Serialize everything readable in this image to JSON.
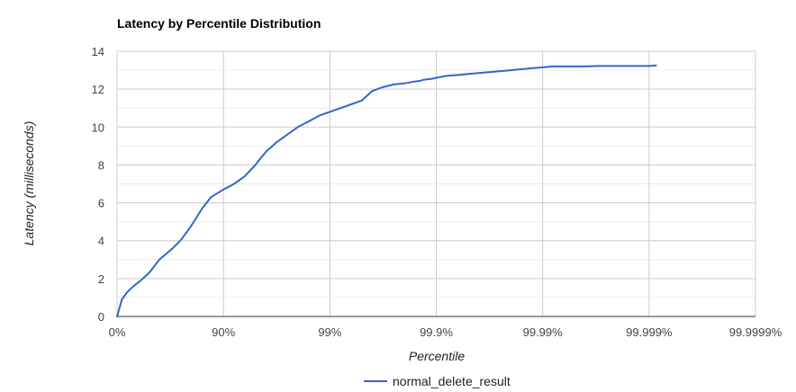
{
  "chart_data": {
    "type": "line",
    "title": "Latency by Percentile Distribution",
    "xlabel": "Percentile",
    "ylabel": "Latency (milliseconds)",
    "x_scale": "log-nines",
    "x_ticks": [
      "0%",
      "90%",
      "99%",
      "99.9%",
      "99.99%",
      "99.999%",
      "99.9999%"
    ],
    "y_ticks": [
      "0",
      "2",
      "4",
      "6",
      "8",
      "10",
      "12",
      "14"
    ],
    "ylim": [
      0,
      14
    ],
    "grid": true,
    "legend_position": "bottom",
    "colors": {
      "series": "#3366cc",
      "grid_major": "#cccccc",
      "grid_minor": "#ebebeb",
      "baseline": "#333333"
    },
    "series": [
      {
        "name": "normal_delete_result",
        "x": [
          0,
          10,
          20,
          30,
          40,
          50,
          60,
          70,
          75,
          80,
          84.15,
          86.9,
          90,
          92.06,
          93.69,
          94.99,
          96.02,
          96.84,
          97.49,
          98.0,
          98.42,
          98.74,
          99.0,
          99.21,
          99.37,
          99.5,
          99.6,
          99.68,
          99.75,
          99.8,
          99.82,
          99.84,
          99.86,
          99.87,
          99.89,
          99.9,
          99.92,
          99.94,
          99.95,
          99.96,
          99.968,
          99.975,
          99.98,
          99.984,
          99.987,
          99.99,
          99.992,
          99.994,
          99.995,
          99.996,
          99.997,
          99.998,
          99.9984,
          99.9987,
          99.999,
          99.99914
        ],
        "values": [
          0,
          0.9,
          1.3,
          1.6,
          1.9,
          2.3,
          3.0,
          3.6,
          4.05,
          4.8,
          5.7,
          6.3,
          6.7,
          7.0,
          7.4,
          8.0,
          8.7,
          9.2,
          9.6,
          10.0,
          10.3,
          10.6,
          10.8,
          11.0,
          11.2,
          11.4,
          11.9,
          12.1,
          12.25,
          12.3,
          12.35,
          12.4,
          12.45,
          12.5,
          12.55,
          12.6,
          12.7,
          12.75,
          12.8,
          12.85,
          12.9,
          12.95,
          13.0,
          13.05,
          13.1,
          13.15,
          13.2,
          13.2,
          13.2,
          13.2,
          13.22,
          13.22,
          13.22,
          13.22,
          13.22,
          13.25
        ]
      }
    ]
  }
}
